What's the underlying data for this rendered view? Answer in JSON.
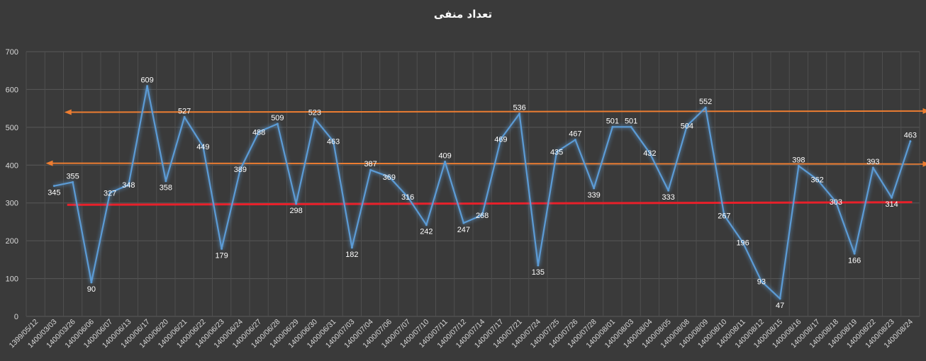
{
  "chart_data": {
    "type": "line",
    "title": "تعداد منفی",
    "xlabel": "",
    "ylabel": "",
    "ylim": [
      0,
      700
    ],
    "yticks": [
      0,
      100,
      200,
      300,
      400,
      500,
      600,
      700
    ],
    "grid": true,
    "legend": "none",
    "categories": [
      "1399/05/12",
      "1400/03/03",
      "1400/03/26",
      "1400/06/06",
      "1400/06/07",
      "1400/06/13",
      "1400/06/17",
      "1400/06/20",
      "1400/06/21",
      "1400/06/22",
      "1400/06/23",
      "1400/06/24",
      "1400/06/27",
      "1400/06/28",
      "1400/06/29",
      "1400/06/30",
      "1400/06/31",
      "1400/07/03",
      "1400/07/04",
      "1400/07/06",
      "1400/07/07",
      "1400/07/10",
      "1400/07/11",
      "1400/07/12",
      "1400/07/14",
      "1400/07/17",
      "1400/07/21",
      "1400/07/24",
      "1400/07/25",
      "1400/07/26",
      "1400/07/28",
      "1400/08/01",
      "1400/08/03",
      "1400/08/04",
      "1400/08/05",
      "1400/08/08",
      "1400/08/09",
      "1400/08/10",
      "1400/08/11",
      "1400/08/12",
      "1400/08/15",
      "1400/08/16",
      "1400/08/17",
      "1400/08/18",
      "1400/08/19",
      "1400/08/22",
      "1400/08/23",
      "1400/08/24"
    ],
    "series": [
      {
        "color": "#5b9bd5",
        "values": [
          null,
          345,
          355,
          90,
          327,
          348,
          609,
          358,
          527,
          449,
          179,
          389,
          488,
          509,
          298,
          523,
          463,
          182,
          387,
          369,
          316,
          242,
          409,
          247,
          268,
          469,
          536,
          135,
          435,
          467,
          339,
          501,
          501,
          432,
          333,
          504,
          552,
          267,
          196,
          93,
          47,
          398,
          362,
          303,
          166,
          393,
          314,
          463
        ],
        "data_labels": [
          "",
          "345",
          "355",
          "90",
          "327",
          "348",
          "609",
          "358",
          "527",
          "449",
          "179",
          "389",
          "488",
          "509",
          "298",
          "523",
          "463",
          "182",
          "387",
          "369",
          "316",
          "242",
          "409",
          "247",
          "268",
          "469",
          "536",
          "135",
          "435",
          "467",
          "339",
          "501",
          "501",
          "432",
          "333",
          "504",
          "552",
          "267",
          "196",
          "93",
          "47",
          "398",
          "362",
          "303",
          "166",
          "393",
          "314",
          "463"
        ]
      }
    ],
    "reference_lines": [
      {
        "color": "#ed7d31",
        "from": {
          "x": "1400/03/26",
          "y": 540
        },
        "to": {
          "x": "1400/08/24",
          "y": 543
        },
        "arrows": true
      },
      {
        "color": "#ed7d31",
        "from": {
          "x": "1400/03/03",
          "y": 405
        },
        "to": {
          "x": "1400/08/24",
          "y": 403
        },
        "arrows": true
      },
      {
        "color": "#e8202a",
        "from": {
          "x": "1400/03/26",
          "y": 295
        },
        "to": {
          "x": "1400/08/24",
          "y": 302
        },
        "arrows": false
      }
    ]
  }
}
